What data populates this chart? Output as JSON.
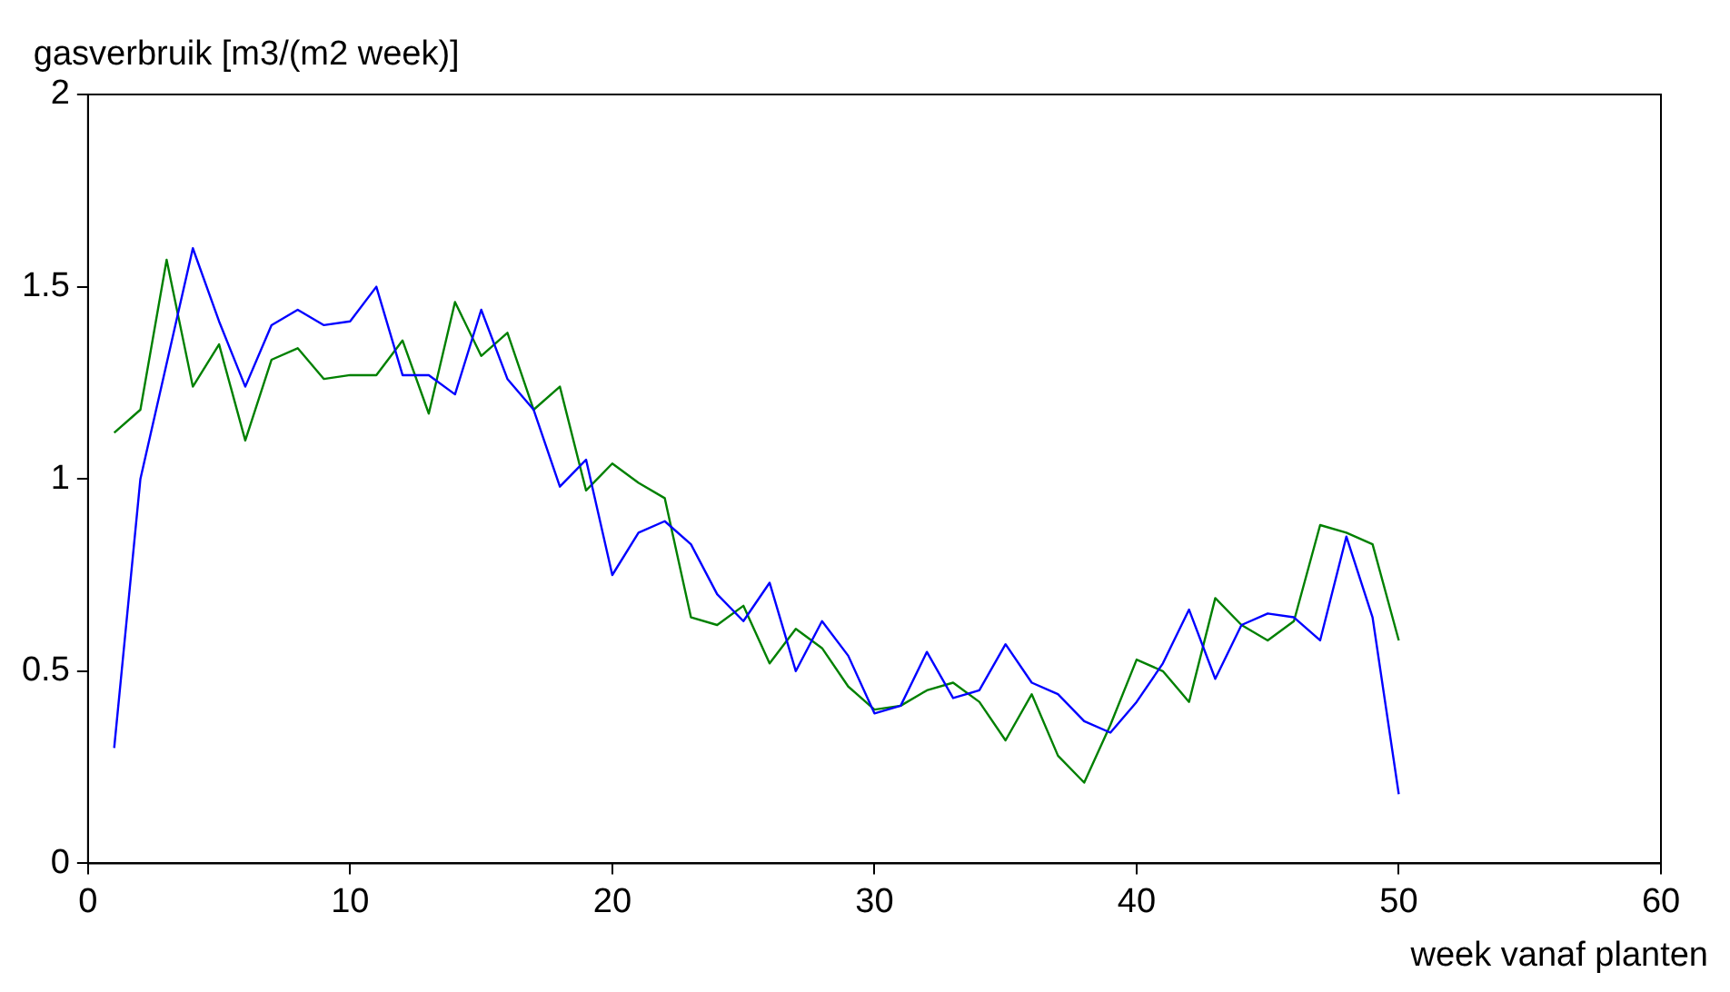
{
  "chart_data": {
    "type": "line",
    "ylabel": "gasverbruik [m3/(m2 week)]",
    "xlabel": "week vanaf planten",
    "x": [
      1,
      2,
      3,
      4,
      5,
      6,
      7,
      8,
      9,
      10,
      11,
      12,
      13,
      14,
      15,
      16,
      17,
      18,
      19,
      20,
      21,
      22,
      23,
      24,
      25,
      26,
      27,
      28,
      29,
      30,
      31,
      32,
      33,
      34,
      35,
      36,
      37,
      38,
      39,
      40,
      41,
      42,
      43,
      44,
      45,
      46,
      47,
      48,
      49,
      50
    ],
    "series": [
      {
        "color": "#0000ff",
        "values": [
          0.3,
          1.0,
          1.3,
          1.6,
          1.41,
          1.24,
          1.4,
          1.44,
          1.4,
          1.41,
          1.5,
          1.27,
          1.27,
          1.22,
          1.44,
          1.26,
          1.18,
          0.98,
          1.05,
          0.75,
          0.86,
          0.89,
          0.83,
          0.7,
          0.63,
          0.73,
          0.5,
          0.63,
          0.54,
          0.39,
          0.41,
          0.55,
          0.43,
          0.45,
          0.57,
          0.47,
          0.44,
          0.37,
          0.34,
          0.42,
          0.52,
          0.66,
          0.48,
          0.62,
          0.65,
          0.64,
          0.58,
          0.85,
          0.64,
          0.18
        ]
      },
      {
        "color": "#008000",
        "values": [
          1.12,
          1.18,
          1.57,
          1.24,
          1.35,
          1.1,
          1.31,
          1.34,
          1.26,
          1.27,
          1.27,
          1.36,
          1.17,
          1.46,
          1.32,
          1.38,
          1.18,
          1.24,
          0.97,
          1.04,
          0.99,
          0.95,
          0.64,
          0.62,
          0.67,
          0.52,
          0.61,
          0.56,
          0.46,
          0.4,
          0.41,
          0.45,
          0.47,
          0.42,
          0.32,
          0.44,
          0.28,
          0.21,
          0.36,
          0.53,
          0.5,
          0.42,
          0.69,
          0.62,
          0.58,
          0.63,
          0.88,
          0.86,
          0.83,
          0.58
        ]
      }
    ],
    "xlim": [
      0,
      60
    ],
    "xticks": [
      0,
      10,
      20,
      30,
      40,
      50,
      60
    ],
    "ylim": [
      0,
      2
    ],
    "yticks": [
      0,
      0.5,
      1,
      1.5,
      2
    ],
    "grid": false,
    "legend": false,
    "marker": "none",
    "line_style": "solid"
  }
}
